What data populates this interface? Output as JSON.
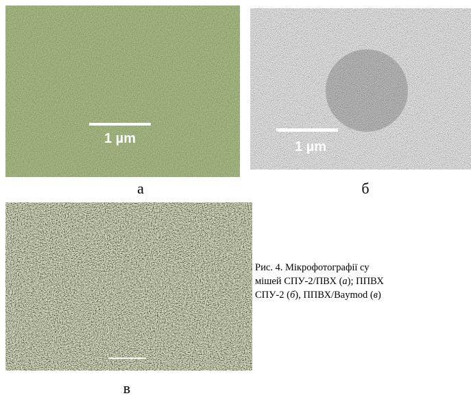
{
  "figure": {
    "panels": [
      {
        "label": "а",
        "scale_label": "1 µm"
      },
      {
        "label": "б",
        "scale_label": "1 µm"
      },
      {
        "label": "в"
      }
    ],
    "caption": {
      "lines": [
        [
          "Рис. 4. Мікрофотографії су"
        ],
        [
          "мішей СПУ-2/ПВХ (",
          "а",
          "); ППВХ"
        ],
        [
          "СПУ-2 (",
          "б",
          "), ППВХ/Baymod (",
          "в",
          ")"
        ]
      ]
    }
  }
}
